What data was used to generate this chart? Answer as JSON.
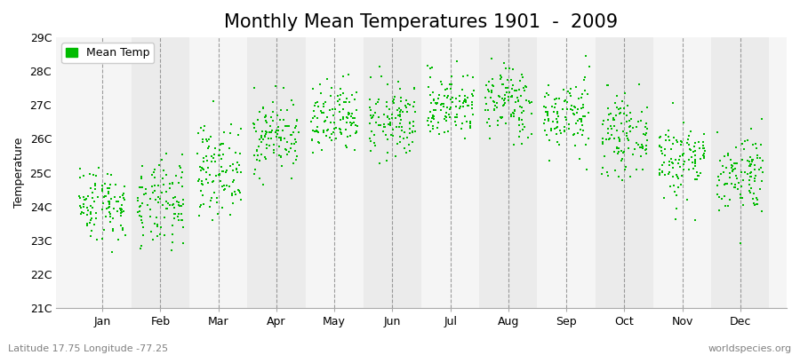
{
  "title": "Monthly Mean Temperatures 1901  -  2009",
  "ylabel": "Temperature",
  "ylim": [
    21,
    29
  ],
  "yticks": [
    21,
    22,
    23,
    24,
    25,
    26,
    27,
    28,
    29
  ],
  "ytick_labels": [
    "21C",
    "22C",
    "23C",
    "24C",
    "25C",
    "26C",
    "27C",
    "28C",
    "29C"
  ],
  "months": [
    "Jan",
    "Feb",
    "Mar",
    "Apr",
    "May",
    "Jun",
    "Jul",
    "Aug",
    "Sep",
    "Oct",
    "Nov",
    "Dec"
  ],
  "month_means": [
    24.1,
    24.0,
    25.1,
    26.1,
    26.5,
    26.5,
    27.0,
    27.1,
    26.7,
    26.1,
    25.4,
    25.0
  ],
  "month_stds": [
    0.55,
    0.65,
    0.65,
    0.55,
    0.55,
    0.55,
    0.5,
    0.55,
    0.55,
    0.55,
    0.6,
    0.6
  ],
  "n_years": 109,
  "dot_color": "#00BB00",
  "dot_size": 3,
  "bg_color_odd": "#F5F5F5",
  "bg_color_even": "#EBEBEB",
  "title_fontsize": 15,
  "axis_label_fontsize": 9,
  "tick_fontsize": 9,
  "legend_label": "Mean Temp",
  "footer_left": "Latitude 17.75 Longitude -77.25",
  "footer_right": "worldspecies.org",
  "footer_fontsize": 8,
  "grid_color": "#777777",
  "seed": 42
}
